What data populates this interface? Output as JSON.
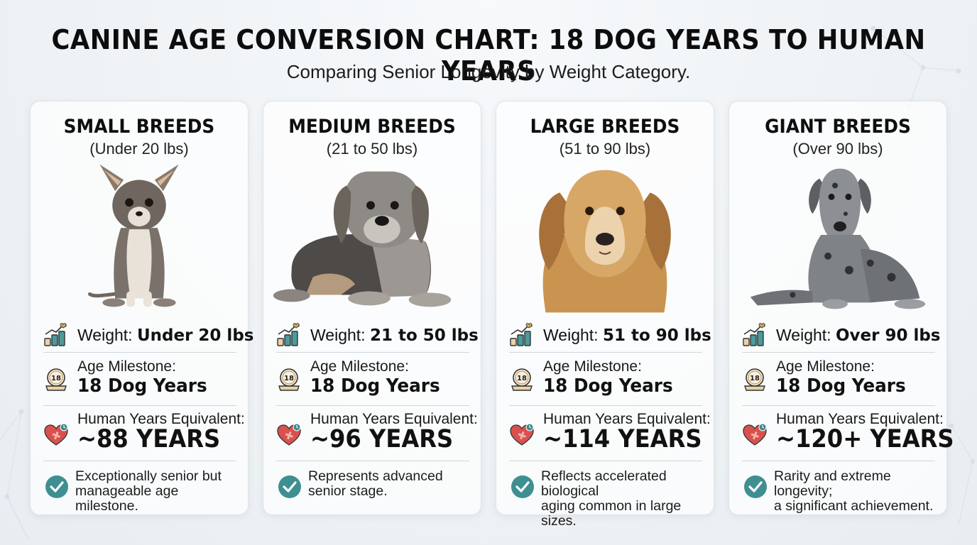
{
  "title": "CANINE AGE CONVERSION CHART: 18 DOG YEARS TO HUMAN YEARS",
  "subtitle": "Comparing Senior Longevity by Weight Category.",
  "colors": {
    "accent_teal": "#3a8a8e",
    "heart_red": "#d9514e",
    "check_teal": "#3f8f92",
    "gold": "#c89a55"
  },
  "labels": {
    "weight": "Weight:",
    "milestone": "Age Milestone:",
    "human": "Human Years Equivalent:"
  },
  "cards": [
    {
      "title": "SMALL BREEDS",
      "range": "(Under 20 lbs)",
      "weight": "Under 20 lbs",
      "milestone_badge": "18",
      "milestone": "18 Dog Years",
      "human_years": "~88 YEARS",
      "note_line1": "Exceptionally senior but",
      "note_line2": "manageable age milestone.",
      "dog_image": "chihuahua-dog-photo"
    },
    {
      "title": "MEDIUM BREEDS",
      "range": "(21 to 50 lbs)",
      "weight": "21 to 50 lbs",
      "milestone_badge": "18",
      "milestone": "18 Dog Years",
      "human_years": "~96 YEARS",
      "note_line1": "Represents advanced",
      "note_line2": "senior stage.",
      "dog_image": "beagle-dog-photo"
    },
    {
      "title": "LARGE BREEDS",
      "range": "(51 to 90 lbs)",
      "weight": "51 to 90 lbs",
      "milestone_badge": "18",
      "milestone": "18 Dog Years",
      "human_years": "~114 YEARS",
      "note_line1": "Reflects accelerated biological",
      "note_line2": "aging common in large sizes.",
      "dog_image": "golden-retriever-dog-photo"
    },
    {
      "title": "GIANT BREEDS",
      "range": "(Over 90 lbs)",
      "weight": "Over 90 lbs",
      "milestone_badge": "18",
      "milestone": "18 Dog Years",
      "human_years": "~120+ YEARS",
      "note_line1": "Rarity and extreme longevity;",
      "note_line2": "a significant achievement.",
      "dog_image": "great-dane-dog-photo"
    }
  ]
}
